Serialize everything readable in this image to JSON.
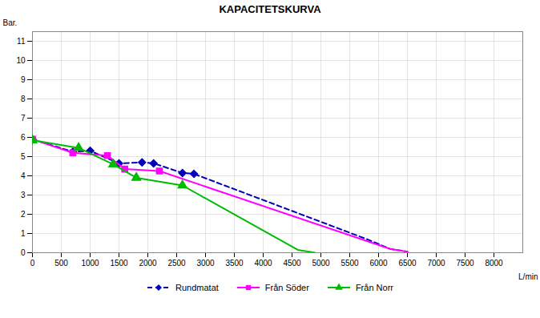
{
  "chart_data": {
    "type": "line",
    "title": "KAPACITETSKURVA",
    "xlabel": "L/min",
    "ylabel": "Bar.",
    "xlim": [
      0,
      8500
    ],
    "ylim": [
      0,
      11.5
    ],
    "xticks": [
      0,
      500,
      1000,
      1500,
      2000,
      2500,
      3000,
      3500,
      4000,
      4500,
      5000,
      5500,
      6000,
      6500,
      7000,
      7500,
      8000
    ],
    "yticks": [
      0,
      1,
      2,
      3,
      4,
      5,
      6,
      7,
      8,
      9,
      10,
      11
    ],
    "grid": true,
    "legend": "bottom",
    "series": [
      {
        "name": "Rundmatat",
        "color": "#0000BB",
        "line_style": "dashed",
        "marker": "diamond",
        "x": [
          0,
          700,
          1000,
          1500,
          1900,
          2100,
          2600,
          2800,
          5800,
          6200,
          6500
        ],
        "values": [
          5.9,
          5.25,
          5.3,
          4.65,
          4.7,
          4.65,
          4.15,
          4.1,
          0.7,
          0.2,
          0.05
        ],
        "marker_x": [
          0,
          700,
          1000,
          1500,
          1900,
          2100,
          2600,
          2800
        ],
        "marker_values": [
          5.9,
          5.25,
          5.3,
          4.65,
          4.7,
          4.65,
          4.15,
          4.1
        ]
      },
      {
        "name": "Från Söder",
        "color": "#FF00FF",
        "line_style": "solid",
        "marker": "square",
        "x": [
          0,
          700,
          1300,
          1600,
          2200,
          6200,
          6500
        ],
        "values": [
          5.9,
          5.2,
          5.05,
          4.35,
          4.25,
          0.2,
          0.05
        ],
        "marker_x": [
          0,
          700,
          1300,
          1600,
          2200
        ],
        "marker_values": [
          5.9,
          5.2,
          5.05,
          4.35,
          4.25
        ]
      },
      {
        "name": "Från Norr",
        "color": "#00BB00",
        "line_style": "solid",
        "marker": "triangle",
        "x": [
          0,
          800,
          1400,
          1800,
          2600,
          4600,
          4900
        ],
        "values": [
          5.85,
          5.45,
          4.6,
          3.9,
          3.5,
          0.15,
          0.0
        ],
        "marker_x": [
          0,
          800,
          1400,
          1800,
          2600
        ],
        "marker_values": [
          5.85,
          5.45,
          4.6,
          3.9,
          3.5
        ]
      }
    ]
  }
}
